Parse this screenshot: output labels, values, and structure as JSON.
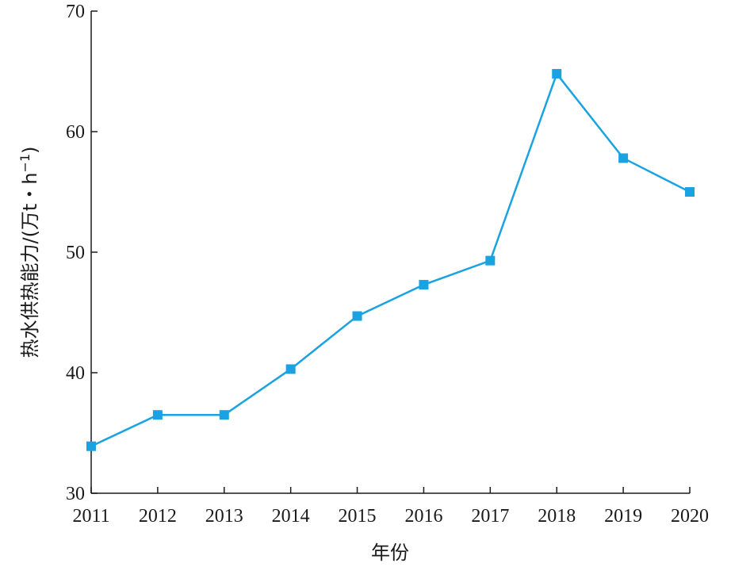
{
  "chart_data": {
    "type": "line",
    "title": "",
    "xlabel": "年份",
    "ylabel": "热水供热能力/(万t・h⁻¹)",
    "ylabel_main": "热水供热能力/(万t・h",
    "ylabel_sup": "−1",
    "ylabel_close": ")",
    "x": [
      "2011",
      "2012",
      "2013",
      "2014",
      "2015",
      "2016",
      "2017",
      "2018",
      "2019",
      "2020"
    ],
    "series": [
      {
        "values": [
          33.9,
          36.5,
          36.5,
          40.3,
          44.7,
          47.3,
          49.3,
          64.8,
          57.8,
          55.0
        ],
        "color": "#1aa3e0",
        "marker": "square"
      }
    ],
    "ylim": [
      30,
      70
    ],
    "yticks": [
      30,
      40,
      50,
      60,
      70
    ],
    "grid": false,
    "legend": "none"
  }
}
